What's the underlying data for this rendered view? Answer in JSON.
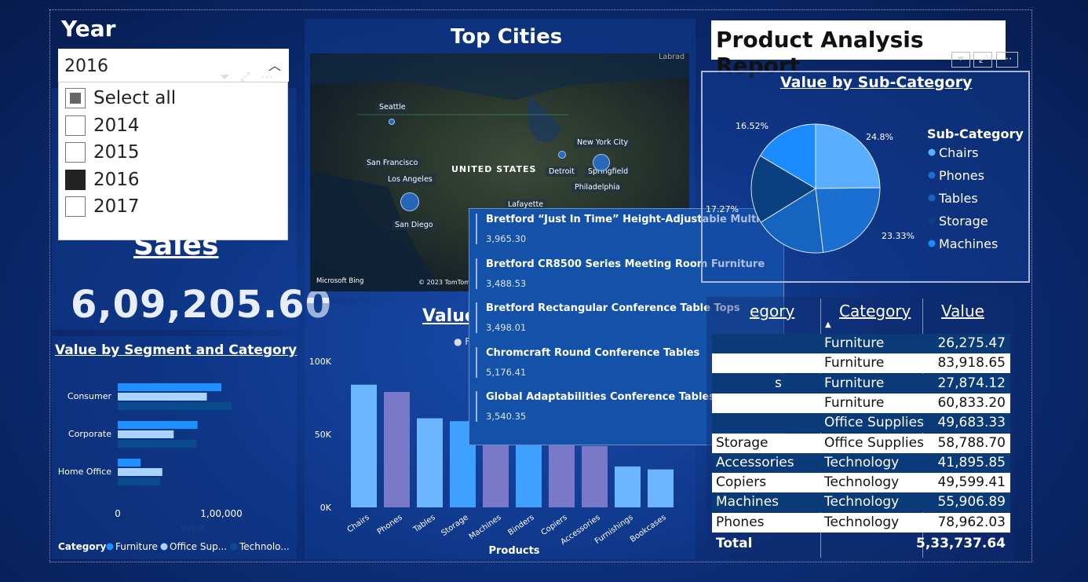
{
  "year_slicer": {
    "title": "Year",
    "selected": "2016",
    "options": [
      {
        "label": "Select all",
        "state": "partial"
      },
      {
        "label": "2014",
        "state": "off"
      },
      {
        "label": "2015",
        "state": "off"
      },
      {
        "label": "2016",
        "state": "on"
      },
      {
        "label": "2017",
        "state": "off"
      }
    ]
  },
  "sales_card": {
    "title": "Sales",
    "value": "6,09,205.60"
  },
  "segment_chart": {
    "title": "Value by Segment and Category",
    "x_tick_labels": [
      "0",
      "1,00,000"
    ],
    "axis_title": "Value",
    "legend_title": "Category",
    "legend_items": [
      "Furniture",
      "Office Sup...",
      "Technolo..."
    ]
  },
  "map_visual": {
    "title": "Top Cities",
    "cities": [
      "Seattle",
      "San Francisco",
      "Los Angeles",
      "San Diego",
      "New York City",
      "Detroit",
      "Springfield",
      "Philadelphia",
      "Lafayette"
    ],
    "country_label": "UNITED STATES",
    "corner_label": "Labrad",
    "bing": "Microsoft Bing",
    "copyright": "© 2023 TomTom,"
  },
  "products_chart": {
    "title_partial": "Value",
    "legend_partial": "F",
    "x_title": "Products",
    "y_ticks": [
      "100K",
      "50K",
      "0K"
    ]
  },
  "tooltip": {
    "items": [
      {
        "name": "Bretford “Just In Time” Height-Adjustable Multi-Task ...",
        "value": "3,965.30"
      },
      {
        "name": "Bretford CR8500 Series Meeting Room Furniture",
        "value": "3,488.53"
      },
      {
        "name": "Bretford Rectangular Conference Table Tops",
        "value": "3,498.01"
      },
      {
        "name": "Chromcraft Round Conference Tables",
        "value": "5,176.41"
      },
      {
        "name": "Global Adaptabilities Conference Tables",
        "value": "3,540.35"
      }
    ]
  },
  "report": {
    "title": "Product Analysis Report"
  },
  "pie_chart": {
    "title": "Value by Sub-Category",
    "legend_title": "Sub-Category",
    "labels": [
      "24.8%",
      "23.33%",
      "17.27%",
      "16.52%"
    ]
  },
  "table": {
    "headers": [
      "egory",
      "Category",
      "Value"
    ],
    "rows": [
      {
        "sub": "",
        "cat": "Furniture",
        "val": "26,275.47"
      },
      {
        "sub": "",
        "cat": "Furniture",
        "val": "83,918.65"
      },
      {
        "sub": "s",
        "cat": "Furniture",
        "val": "27,874.12"
      },
      {
        "sub": "",
        "cat": "Furniture",
        "val": "60,833.20"
      },
      {
        "sub": "",
        "cat": "Office Supplies",
        "val": "49,683.33"
      },
      {
        "sub": "Storage",
        "cat": "Office Supplies",
        "val": "58,788.70"
      },
      {
        "sub": "Accessories",
        "cat": "Technology",
        "val": "41,895.85"
      },
      {
        "sub": "Copiers",
        "cat": "Technology",
        "val": "49,599.41"
      },
      {
        "sub": "Machines",
        "cat": "Technology",
        "val": "55,906.89"
      },
      {
        "sub": "Phones",
        "cat": "Technology",
        "val": "78,962.03"
      }
    ],
    "total_label": "Total",
    "total_value": "5,33,737.64"
  },
  "colors": {
    "furniture": "#1e90ff",
    "office_supplies": "#a8d4ff",
    "technology": "#0b4a8c",
    "bar_light": "#6cb6ff",
    "bar_purple": "#7a78c8",
    "bar_mid": "#3ea0ff"
  },
  "chart_data": [
    {
      "type": "bar",
      "orientation": "horizontal",
      "title": "Value by Segment and Category",
      "categories": [
        "Consumer",
        "Corporate",
        "Home Office"
      ],
      "series": [
        {
          "name": "Furniture",
          "values": [
            100000,
            77000,
            22000
          ]
        },
        {
          "name": "Office Sup...",
          "values": [
            86000,
            54000,
            43000
          ]
        },
        {
          "name": "Technolo...",
          "values": [
            110000,
            76000,
            41000
          ]
        }
      ],
      "xlim": [
        0,
        130000
      ],
      "xlabel": "Value",
      "legend": "bottom"
    },
    {
      "type": "bar",
      "title": "Value",
      "categories": [
        "Chairs",
        "Phones",
        "Tables",
        "Storage",
        "Machines",
        "Binders",
        "Copiers",
        "Accessories",
        "Furnishings",
        "Bookcases"
      ],
      "values": [
        84000,
        79000,
        61000,
        59000,
        56000,
        50000,
        50000,
        42000,
        28000,
        26000
      ],
      "ylim": [
        0,
        100000
      ],
      "xlabel": "Products"
    },
    {
      "type": "pie",
      "title": "Value by Sub-Category",
      "categories": [
        "Chairs",
        "Phones",
        "Tables",
        "Storage",
        "Machines"
      ],
      "values": [
        24.8,
        23.33,
        18.08,
        17.27,
        16.52
      ]
    }
  ]
}
